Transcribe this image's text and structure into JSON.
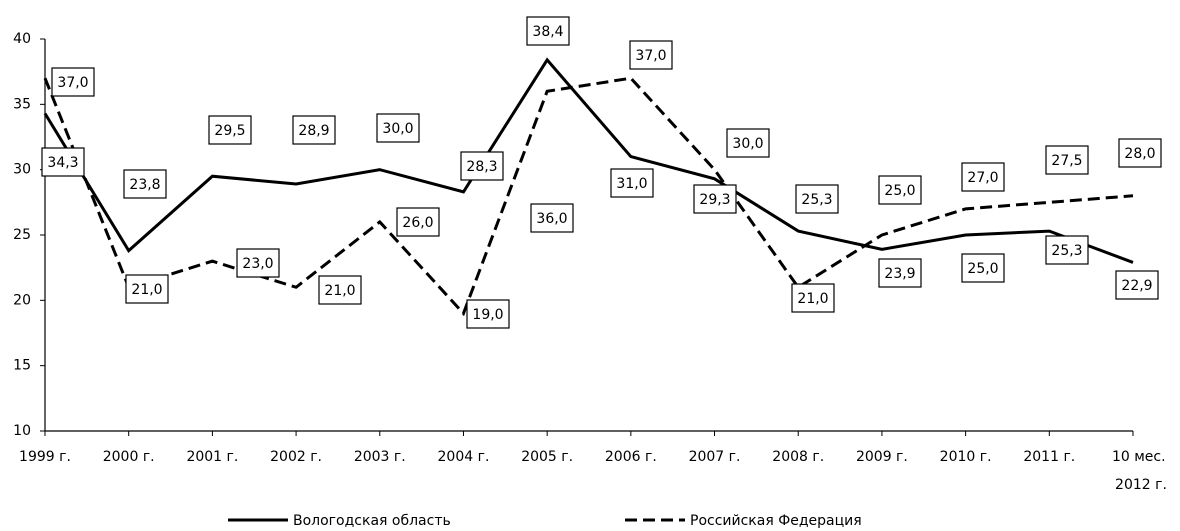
{
  "chart_data": {
    "type": "line",
    "categories": [
      "1999 г.",
      "2000 г.",
      "2001 г.",
      "2002 г.",
      "2003 г.",
      "2004 г.",
      "2005 г.",
      "2006 г.",
      "2007 г.",
      "2008 г.",
      "2009 г.",
      "2010 г.",
      "2011 г.",
      "10 мес. 2012 г."
    ],
    "series": [
      {
        "name": "Вологодская область",
        "color": "#000000",
        "dash": false,
        "values": [
          34.3,
          23.8,
          29.5,
          28.9,
          30.0,
          28.3,
          38.4,
          31.0,
          29.3,
          25.3,
          23.9,
          25.0,
          25.3,
          22.9
        ],
        "value_labels": [
          "34,3",
          "23,8",
          "29,5",
          "28,9",
          "30,0",
          "28,3",
          "38,4",
          "31,0",
          "29,3",
          "25,3",
          "23,9",
          "25,0",
          "25,3",
          "22,9"
        ]
      },
      {
        "name": "Российская Федерация",
        "color": "#000000",
        "dash": true,
        "values": [
          37.0,
          21.0,
          23.0,
          21.0,
          26.0,
          19.0,
          36.0,
          37.0,
          30.0,
          21.0,
          25.0,
          27.0,
          27.5,
          28.0
        ],
        "value_labels": [
          "37,0",
          "21,0",
          "23,0",
          "21,0",
          "26,0",
          "19,0",
          "36,0",
          "37,0",
          "30,0",
          "21,0",
          "25,0",
          "27,0",
          "27,5",
          "28,0"
        ]
      }
    ],
    "ylim": [
      10,
      40
    ],
    "yticks": [
      10,
      15,
      20,
      25,
      30,
      35,
      40
    ],
    "grid": false,
    "legend": "bottom"
  }
}
